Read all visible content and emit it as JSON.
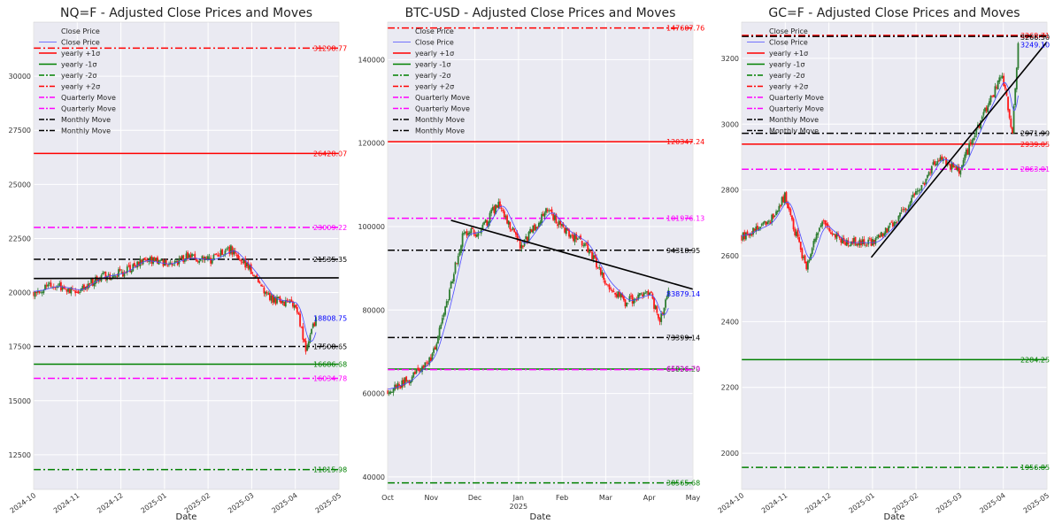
{
  "chart_data": [
    {
      "type": "line",
      "title": "NQ=F - Adjusted Close Prices and Moves",
      "xlabel": "Date",
      "ylabel": "",
      "x_ticks": [
        "2024-10",
        "2024-11",
        "2024-12",
        "2025-01",
        "2025-02",
        "2025-03",
        "2025-04",
        "2025-05"
      ],
      "x_range": [
        "2024-10-01",
        "2025-05-01"
      ],
      "ylim": [
        10900,
        32500
      ],
      "y_ticks": [
        12500,
        15000,
        17500,
        20000,
        22500,
        25000,
        27500,
        30000
      ],
      "legend": [
        "Close Price",
        "Close Price",
        "yearly +1σ",
        "yearly -1σ",
        "yearly -2σ",
        "yearly +2σ",
        "Quarterly Move",
        "Quarterly Move",
        "Monthly Move",
        "Monthly Move"
      ],
      "levels": [
        {
          "value": 31298.77,
          "label": "31298.77",
          "color": "#ff0000",
          "style": "dashdot"
        },
        {
          "value": 26428.07,
          "label": "26428.07",
          "color": "#ff0000",
          "style": "solid"
        },
        {
          "value": 23009.22,
          "label": "23009.22",
          "color": "#ff00ff",
          "style": "dashdot"
        },
        {
          "value": 21535.35,
          "label": "21535.35",
          "color": "#000000",
          "style": "dashdot"
        },
        {
          "value": 18808.75,
          "label": "18808.75",
          "color": "#0000ff",
          "style": "none"
        },
        {
          "value": 17508.65,
          "label": "17508.65",
          "color": "#000000",
          "style": "dashdot"
        },
        {
          "value": 16686.68,
          "label": "16686.68",
          "color": "#008000",
          "style": "solid"
        },
        {
          "value": 16034.78,
          "label": "16034.78",
          "color": "#ff00ff",
          "style": "dashdot"
        },
        {
          "value": 11815.98,
          "label": "11815.98",
          "color": "#008000",
          "style": "dashdot"
        }
      ],
      "trendline": {
        "from": [
          "2024-10-01",
          20650
        ],
        "to": [
          "2025-05-01",
          20680
        ]
      },
      "price_path": [
        [
          "2024-10-01",
          20050
        ],
        [
          "2024-10-15",
          20300
        ],
        [
          "2024-11-01",
          20100
        ],
        [
          "2024-11-15",
          20700
        ],
        [
          "2024-12-01",
          20900
        ],
        [
          "2024-12-15",
          21500
        ],
        [
          "2025-01-01",
          21300
        ],
        [
          "2025-01-15",
          21600
        ],
        [
          "2025-02-01",
          21500
        ],
        [
          "2025-02-15",
          22000
        ],
        [
          "2025-03-01",
          21000
        ],
        [
          "2025-03-15",
          19700
        ],
        [
          "2025-04-01",
          19500
        ],
        [
          "2025-04-08",
          17300
        ],
        [
          "2025-04-15",
          18808
        ]
      ]
    },
    {
      "type": "line",
      "title": "BTC-USD - Adjusted Close Prices and Moves",
      "xlabel": "Date",
      "ylabel": "",
      "x_ticks": [
        "Oct",
        "Nov",
        "Dec",
        "Jan",
        "Feb",
        "Mar",
        "Apr",
        "May"
      ],
      "x_year_label": "2025",
      "x_range": [
        "2024-10-01",
        "2025-05-01"
      ],
      "ylim": [
        37000,
        149000
      ],
      "y_ticks": [
        40000,
        60000,
        80000,
        100000,
        120000,
        140000
      ],
      "legend": [
        "Close Price",
        "Close Price",
        "yearly +1σ",
        "yearly -1σ",
        "yearly -2σ",
        "yearly +2σ",
        "Quarterly Move",
        "Quarterly Move",
        "Monthly Move",
        "Monthly Move"
      ],
      "levels": [
        {
          "value": 147607.76,
          "label": "147607.76",
          "color": "#ff0000",
          "style": "dashdot"
        },
        {
          "value": 120347.24,
          "label": "120347.24",
          "color": "#ff0000",
          "style": "solid"
        },
        {
          "value": 101976.13,
          "label": "101976.13",
          "color": "#ff00ff",
          "style": "dashdot"
        },
        {
          "value": 94318.95,
          "label": "94318.95",
          "color": "#000000",
          "style": "dashdot"
        },
        {
          "value": 83879.14,
          "label": "83879.14",
          "color": "#0000ff",
          "style": "none"
        },
        {
          "value": 73399.14,
          "label": "73399.14",
          "color": "#000000",
          "style": "dashdot"
        },
        {
          "value": 65836.2,
          "label": "65836.20",
          "color": "#008000",
          "style": "solid"
        },
        {
          "value": 65726.79,
          "label": "65726.79",
          "color": "#ff00ff",
          "style": "dashdot"
        },
        {
          "value": 38565.68,
          "label": "38565.68",
          "color": "#008000",
          "style": "dashdot"
        }
      ],
      "trendline": {
        "from": [
          "2024-11-14",
          101500
        ],
        "to": [
          "2025-05-01",
          85000
        ]
      },
      "price_path": [
        [
          "2024-10-01",
          61000
        ],
        [
          "2024-10-15",
          63000
        ],
        [
          "2024-11-01",
          69000
        ],
        [
          "2024-11-10",
          80000
        ],
        [
          "2024-11-22",
          98000
        ],
        [
          "2024-12-05",
          99000
        ],
        [
          "2024-12-17",
          106000
        ],
        [
          "2025-01-01",
          95000
        ],
        [
          "2025-01-20",
          104000
        ],
        [
          "2025-02-01",
          99000
        ],
        [
          "2025-02-15",
          96000
        ],
        [
          "2025-03-01",
          87000
        ],
        [
          "2025-03-15",
          82000
        ],
        [
          "2025-04-01",
          84000
        ],
        [
          "2025-04-08",
          77000
        ],
        [
          "2025-04-14",
          83879
        ]
      ]
    },
    {
      "type": "line",
      "title": "GC=F - Adjusted Close Prices and Moves",
      "xlabel": "Date",
      "ylabel": "",
      "x_ticks": [
        "2024-10",
        "2024-11",
        "2024-12",
        "2025-01",
        "2025-02",
        "2025-03",
        "2025-04",
        "2025-05"
      ],
      "x_range": [
        "2024-10-01",
        "2025-05-01"
      ],
      "ylim": [
        1890,
        3310
      ],
      "y_ticks": [
        2000,
        2200,
        2400,
        2600,
        2800,
        3000,
        3200
      ],
      "legend": [
        "Close Price",
        "Close Price",
        "yearly +1σ",
        "yearly -1σ",
        "yearly -2σ",
        "yearly +2σ",
        "Quarterly Move",
        "Quarterly Move",
        "Monthly Move",
        "Monthly Move"
      ],
      "levels": [
        {
          "value": 3269.71,
          "label": "3269.71",
          "color": "#ff0000",
          "style": "dashdot"
        },
        {
          "value": 3266.5,
          "label": "3266.50",
          "color": "#000000",
          "style": "dashdot"
        },
        {
          "value": 3249.1,
          "label": "3249.10",
          "color": "#0000ff",
          "style": "none"
        },
        {
          "value": 2971.99,
          "label": "2971.99",
          "color": "#000000",
          "style": "dashdot"
        },
        {
          "value": 2939.05,
          "label": "2939.05",
          "color": "#ff0000",
          "style": "solid"
        },
        {
          "value": 2863.01,
          "label": "2863.01",
          "color": "#ff00ff",
          "style": "dashdot"
        },
        {
          "value": 2284.25,
          "label": "2284.25",
          "color": "#008000",
          "style": "solid"
        },
        {
          "value": 1956.85,
          "label": "1956.85",
          "color": "#008000",
          "style": "dashdot"
        }
      ],
      "trendline": {
        "from": [
          "2024-12-30",
          2595
        ],
        "to": [
          "2025-05-01",
          3250
        ]
      },
      "price_path": [
        [
          "2024-10-01",
          2660
        ],
        [
          "2024-10-20",
          2700
        ],
        [
          "2024-10-31",
          2780
        ],
        [
          "2024-11-10",
          2630
        ],
        [
          "2024-11-15",
          2570
        ],
        [
          "2024-11-25",
          2700
        ],
        [
          "2024-12-10",
          2640
        ],
        [
          "2025-01-01",
          2640
        ],
        [
          "2025-01-15",
          2700
        ],
        [
          "2025-02-01",
          2800
        ],
        [
          "2025-02-15",
          2900
        ],
        [
          "2025-03-01",
          2860
        ],
        [
          "2025-03-15",
          3000
        ],
        [
          "2025-03-31",
          3150
        ],
        [
          "2025-04-07",
          2980
        ],
        [
          "2025-04-11",
          3249
        ]
      ]
    }
  ]
}
